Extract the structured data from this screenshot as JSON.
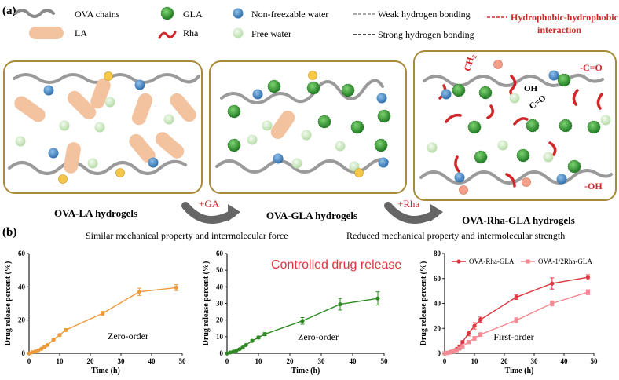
{
  "panel_a_label": "(a)",
  "panel_b_label": "(b)",
  "legend": {
    "ova": "OVA chains",
    "la": "LA",
    "gla": "GLA",
    "rha": "Rha",
    "nonfreezable": "Non-freezable water",
    "free": "Free water",
    "weak_hb": "Weak hydrogen bonding",
    "strong_hb": "Strong hydrogen bonding",
    "hydrophobic_1": "Hydrophobic-hydrophobic",
    "hydrophobic_2": "interaction"
  },
  "boxes": {
    "la_title": "OVA-LA hydrogels",
    "gla_title": "OVA-GLA hydrogels",
    "rha_title": "OVA-Rha-GLA hydrogels",
    "arrow1_label": "+GA",
    "arrow2_label": "+Rha",
    "ch2": "CH",
    "ch2_sub": "2",
    "co_top": "-C=O",
    "oh_mid": "OH",
    "co_mid": "C=O",
    "oh_bottom": "-OH",
    "gla_glyph": "血",
    "water_glyph": "o",
    "plus": "+",
    "minus": "−"
  },
  "captions": {
    "left": "Similar mechanical property and intermolecular force",
    "right": "Reduced mechanical property and intermolecular strength"
  },
  "center_title": "Controlled drug release",
  "colors": {
    "orange": "#ec9a3a",
    "green": "#2f8a24",
    "red_dark": "#e0353f",
    "red_light": "#f28a93",
    "la_fill": "#f3c3a0",
    "gla_fill": "#2f9a36",
    "water_blue": "#4a88c6",
    "free_water": "#cfe8c4",
    "box_border": "#a88a3a"
  },
  "chart_data": [
    {
      "type": "line",
      "annotation": "Zero-order",
      "xlabel": "Time (h)",
      "ylabel": "Drug release percent (%)",
      "xlim": [
        0,
        50
      ],
      "ylim": [
        0,
        60
      ],
      "xticks": [
        0,
        10,
        20,
        30,
        40,
        50
      ],
      "yticks": [
        0,
        20,
        40,
        60
      ],
      "series": [
        {
          "x": [
            0,
            1,
            2,
            3,
            4,
            5,
            6,
            8,
            10,
            12,
            24,
            36,
            48
          ],
          "y": [
            0,
            0.6,
            1.1,
            1.8,
            2.7,
            3.8,
            5,
            8.2,
            11,
            14,
            24,
            37,
            39.5
          ],
          "err": [
            0,
            0.3,
            0.3,
            0.4,
            0.4,
            0.5,
            0.5,
            0.6,
            0.7,
            0.8,
            1.2,
            2.2,
            1.8
          ],
          "color": "#ec9a3a"
        }
      ]
    },
    {
      "type": "line",
      "annotation": "Zero-order",
      "xlabel": "Time (h)",
      "ylabel": "Drug release percent (%)",
      "xlim": [
        0,
        50
      ],
      "ylim": [
        0,
        60
      ],
      "xticks": [
        0,
        10,
        20,
        30,
        40,
        50
      ],
      "yticks": [
        0,
        10,
        20,
        30,
        40,
        50,
        60
      ],
      "series": [
        {
          "x": [
            0,
            1,
            2,
            3,
            4,
            5,
            6,
            8,
            10,
            12,
            24,
            36,
            48
          ],
          "y": [
            0,
            0.5,
            1,
            1.7,
            2.5,
            3.5,
            5,
            7.5,
            9.5,
            11.5,
            19.5,
            29.5,
            33
          ],
          "err": [
            0,
            0.3,
            0.3,
            0.4,
            0.4,
            0.5,
            0.5,
            0.6,
            0.8,
            0.9,
            2.0,
            3.5,
            4.0
          ],
          "color": "#2f8a24"
        }
      ]
    },
    {
      "type": "line",
      "annotation": "First-order",
      "xlabel": "Time (h)",
      "ylabel": "Drug release percent (%)",
      "xlim": [
        0,
        50
      ],
      "ylim": [
        0,
        80
      ],
      "xticks": [
        0,
        10,
        20,
        30,
        40,
        50
      ],
      "yticks": [
        0,
        20,
        40,
        60,
        80
      ],
      "series": [
        {
          "name": "OVA-Rha-GLA",
          "color": "#e0353f",
          "x": [
            0,
            1,
            2,
            3,
            4,
            5,
            6,
            8,
            10,
            12,
            24,
            36,
            48
          ],
          "y": [
            0,
            0.5,
            1.2,
            2.2,
            3.5,
            5.5,
            9,
            16,
            22,
            27,
            45,
            56,
            61
          ],
          "err": [
            0,
            0.3,
            0.4,
            0.5,
            0.6,
            0.8,
            1.2,
            2.0,
            2.5,
            2.0,
            1.8,
            4.5,
            2.0
          ]
        },
        {
          "name": "OVA-1/2Rha-GLA",
          "color": "#f28a93",
          "x": [
            0,
            1,
            2,
            3,
            4,
            5,
            6,
            8,
            10,
            12,
            24,
            36,
            48
          ],
          "y": [
            0,
            0.3,
            0.8,
            1.5,
            2.5,
            3.8,
            5.5,
            9,
            12,
            15,
            26.5,
            40,
            49
          ],
          "err": [
            0,
            0.3,
            0.3,
            0.4,
            0.5,
            0.6,
            0.8,
            1.2,
            1.5,
            1.5,
            2.0,
            2.0,
            2.0
          ]
        }
      ]
    }
  ]
}
